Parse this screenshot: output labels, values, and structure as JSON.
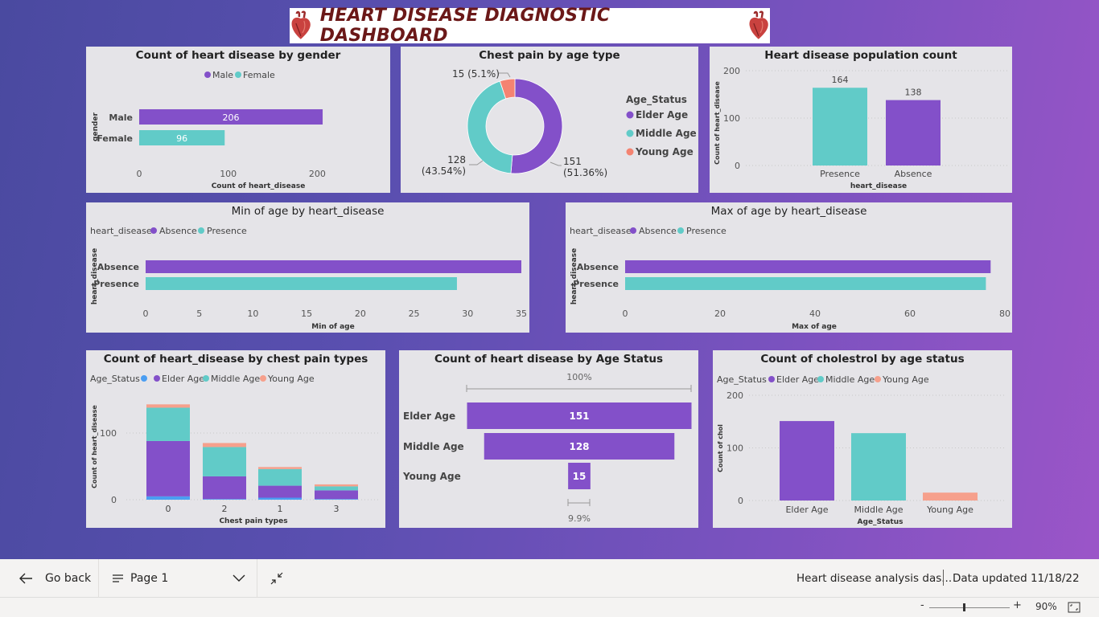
{
  "dashboard_title": "HEART DISEASE DIAGNOSTIC DASHBOARD",
  "colors": {
    "purple": "#8350c9",
    "teal": "#61cbc8",
    "salmon": "#f48371",
    "blue": "#4b9ef2",
    "coral": "#f6a08c"
  },
  "chart_data": [
    {
      "id": "gender",
      "type": "bar",
      "title": "Count of heart disease by gender",
      "legend": [
        "Male",
        "Female"
      ],
      "categories": [
        "Male",
        "Female"
      ],
      "values": [
        206,
        96
      ],
      "value_labels": [
        "206",
        "96"
      ],
      "xlabel": "Count of heart_disease",
      "ylabel": "gender",
      "xticks": [
        "0",
        "100",
        "200"
      ],
      "xlim": [
        0,
        215
      ]
    },
    {
      "id": "chestpain_donut",
      "type": "pie",
      "title": "Chest pain by age type",
      "legend_title": "Age_Status",
      "labels": [
        "Elder Age",
        "Middle Age",
        "Young Age"
      ],
      "values": [
        151,
        128,
        15
      ],
      "slice_labels": [
        "151\n(51.36%)",
        "128\n(43.54%)",
        "15 (5.1%)"
      ]
    },
    {
      "id": "population",
      "type": "bar",
      "title": "Heart disease population count",
      "categories": [
        "Presence",
        "Absence"
      ],
      "values": [
        164,
        138
      ],
      "value_labels": [
        "164",
        "138"
      ],
      "xlabel": "heart_disease",
      "ylabel": "Count of heart_disease",
      "yticks": [
        "0",
        "100",
        "200"
      ],
      "ylim": [
        0,
        200
      ]
    },
    {
      "id": "min_age",
      "type": "bar",
      "title": "Min of age by heart_disease",
      "legend_title": "heart_disease",
      "legend": [
        "Absence",
        "Presence"
      ],
      "categories": [
        "Absence",
        "Presence"
      ],
      "values": [
        35,
        29
      ],
      "xlabel": "Min of age",
      "ylabel": "heart_disease",
      "xticks": [
        "0",
        "5",
        "10",
        "15",
        "20",
        "25",
        "30",
        "35"
      ],
      "xlim": [
        0,
        35
      ]
    },
    {
      "id": "max_age",
      "type": "bar",
      "title": "Max of age by heart_disease",
      "legend_title": "heart_disease",
      "legend": [
        "Absence",
        "Presence"
      ],
      "categories": [
        "Absence",
        "Presence"
      ],
      "values": [
        77,
        76
      ],
      "xlabel": "Max of age",
      "ylabel": "heart_disease",
      "xticks": [
        "0",
        "20",
        "40",
        "60",
        "80"
      ],
      "xlim": [
        0,
        80
      ]
    },
    {
      "id": "chest_types",
      "type": "bar",
      "title": "Count of heart_disease by chest pain types",
      "legend_title": "Age_Status",
      "legend": [
        "",
        "Elder Age",
        "Middle Age",
        "Young Age"
      ],
      "categories": [
        "0",
        "2",
        "1",
        "3"
      ],
      "series": [
        {
          "name": "",
          "values": [
            5,
            1,
            3,
            1
          ]
        },
        {
          "name": "Elder Age",
          "values": [
            83,
            34,
            18,
            13
          ]
        },
        {
          "name": "Middle Age",
          "values": [
            50,
            44,
            25,
            6
          ]
        },
        {
          "name": "Young Age",
          "values": [
            5,
            6,
            3,
            3
          ]
        }
      ],
      "xlabel": "Chest pain types",
      "ylabel": "Count of heart_disease",
      "yticks": [
        "0",
        "100"
      ],
      "ylim": [
        0,
        160
      ]
    },
    {
      "id": "funnel",
      "type": "bar",
      "title": "Count of heart disease by Age Status",
      "categories": [
        "Elder Age",
        "Middle Age",
        "Young Age"
      ],
      "values": [
        151,
        128,
        15
      ],
      "top_pct": "100%",
      "bottom_pct": "9.9%"
    },
    {
      "id": "cholesterol",
      "type": "bar",
      "title": "Count of cholestrol by age status",
      "legend_title": "Age_Status",
      "legend": [
        "Elder Age",
        "Middle Age",
        "Young Age"
      ],
      "categories": [
        "Elder Age",
        "Middle Age",
        "Young Age"
      ],
      "values": [
        151,
        128,
        15
      ],
      "xlabel": "Age_Status",
      "ylabel": "Count of chol",
      "yticks": [
        "0",
        "100",
        "200"
      ],
      "ylim": [
        0,
        200
      ]
    }
  ],
  "footer": {
    "go_back": "Go back",
    "page": "Page 1",
    "report_name": "Heart disease analysis das...",
    "data_updated": "Data updated 11/18/22",
    "zoom_minus": "-",
    "zoom_plus": "+",
    "zoom": "90%"
  }
}
